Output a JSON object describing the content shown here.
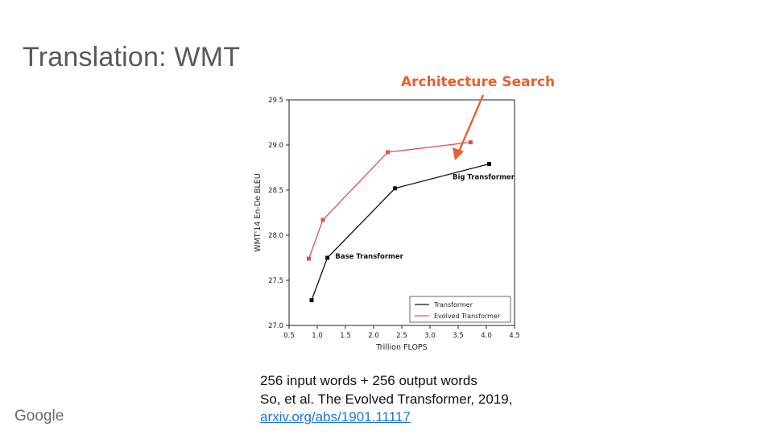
{
  "slide": {
    "title": "Translation: WMT",
    "annotation": "Architecture Search",
    "caption_line_1": "256 input words + 256 output words",
    "caption_line_2": "So, et al. The Evolved Transformer, 2019,",
    "caption_link": "arxiv.org/abs/1901.11117",
    "logo_text": "Google",
    "annotation_color": "#e8602c"
  },
  "chart_data": {
    "type": "line",
    "xlabel": "Trillion FLOPS",
    "ylabel": "WMT'14 En-De BLEU",
    "xlim": [
      0.5,
      4.5
    ],
    "ylim": [
      27.0,
      29.5
    ],
    "xticks": [
      "0.5",
      "1.0",
      "1.5",
      "2.0",
      "2.5",
      "3.0",
      "3.5",
      "4.0",
      "4.5"
    ],
    "yticks": [
      "27.0",
      "27.5",
      "28.0",
      "28.5",
      "29.0",
      "29.5"
    ],
    "grid": false,
    "legend_position": "lower-right",
    "series": [
      {
        "name": "Transformer",
        "color": "#111111",
        "points": [
          [
            0.9,
            27.28
          ],
          [
            1.18,
            27.75
          ],
          [
            2.38,
            28.52
          ],
          [
            4.05,
            28.79
          ]
        ]
      },
      {
        "name": "Evolved Transformer",
        "color": "#d9534f",
        "points": [
          [
            0.85,
            27.74
          ],
          [
            1.1,
            28.17
          ],
          [
            2.25,
            28.92
          ],
          [
            3.72,
            29.03
          ]
        ]
      }
    ],
    "point_labels": [
      {
        "text": "Base Transformer",
        "x": 1.32,
        "y": 27.74
      },
      {
        "text": "Big Transformer",
        "x": 3.4,
        "y": 28.62
      }
    ]
  }
}
